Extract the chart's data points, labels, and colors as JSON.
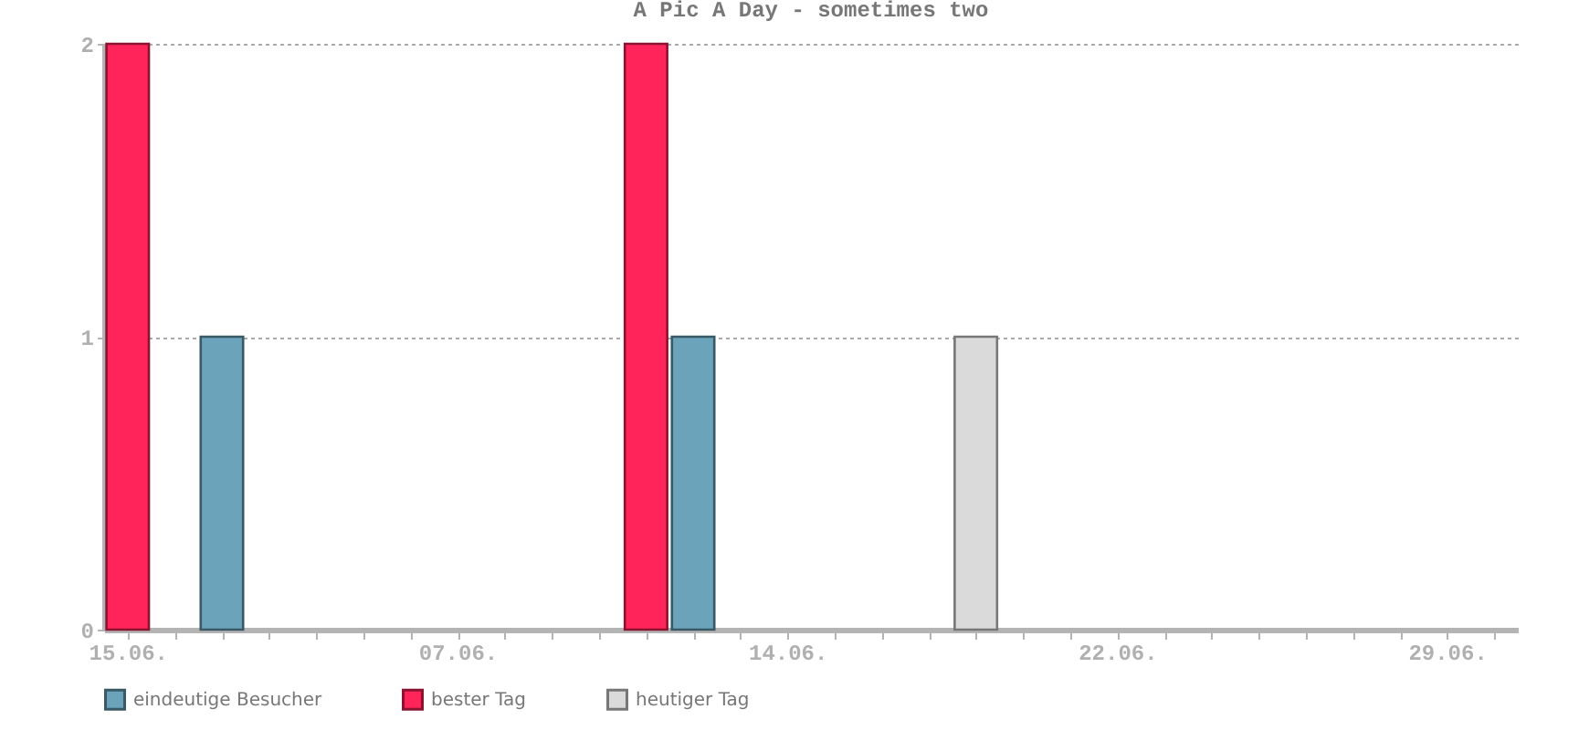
{
  "chart_data": {
    "type": "bar",
    "title": "A Pic A Day - sometimes two",
    "categories": [
      "15.06.",
      null,
      null,
      null,
      null,
      null,
      null,
      "07.06.",
      null,
      null,
      null,
      null,
      null,
      null,
      "14.06.",
      null,
      null,
      null,
      null,
      null,
      null,
      "22.06.",
      null,
      null,
      null,
      null,
      null,
      null,
      "29.06.",
      null
    ],
    "series": [
      {
        "name": "eindeutige Besucher",
        "color": "#6ba3bb",
        "values": [
          null,
          null,
          1,
          null,
          null,
          null,
          null,
          null,
          null,
          null,
          null,
          null,
          1,
          null,
          null,
          null,
          null,
          null,
          null,
          null,
          null,
          null,
          null,
          null,
          null,
          null,
          null,
          null,
          null,
          null
        ]
      },
      {
        "name": "bester Tag",
        "color": "#ff2459",
        "values": [
          2,
          null,
          null,
          null,
          null,
          null,
          null,
          null,
          null,
          null,
          null,
          2,
          null,
          null,
          null,
          null,
          null,
          null,
          null,
          null,
          null,
          null,
          null,
          null,
          null,
          null,
          null,
          null,
          null,
          null
        ]
      },
      {
        "name": "heutiger Tag",
        "color": "#dadada",
        "values": [
          null,
          null,
          null,
          null,
          null,
          null,
          null,
          null,
          null,
          null,
          null,
          null,
          null,
          null,
          null,
          null,
          null,
          null,
          1,
          null,
          null,
          null,
          null,
          null,
          null,
          null,
          null,
          null,
          null,
          null
        ]
      }
    ],
    "ylim": [
      0,
      2
    ],
    "yticks": [
      0,
      1,
      2
    ],
    "grid": "y",
    "legend": "bottom"
  }
}
